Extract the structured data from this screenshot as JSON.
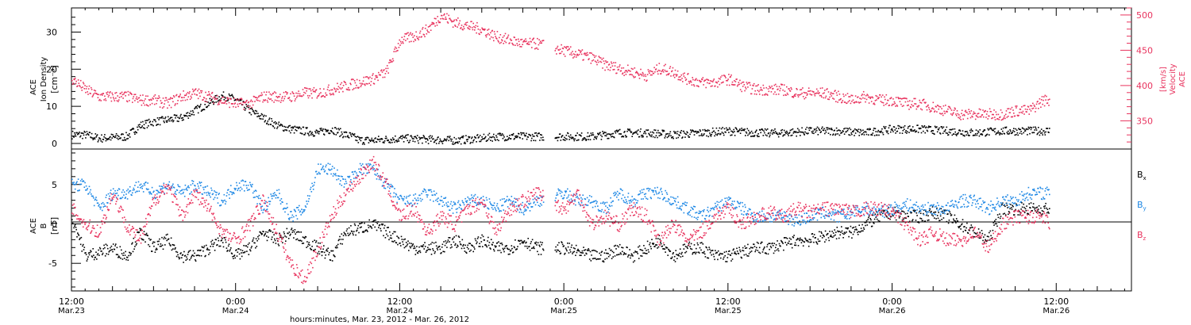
{
  "figure": {
    "xlabel": "hours:minutes, Mar. 23, 2012 - Mar. 26, 2012",
    "x_ticks": [
      {
        "time": "12:00",
        "date": "Mar.23",
        "hour": 0
      },
      {
        "time": "0:00",
        "date": "Mar.24",
        "hour": 12
      },
      {
        "time": "12:00",
        "date": "Mar.24",
        "hour": 24
      },
      {
        "time": "0:00",
        "date": "Mar.25",
        "hour": 36
      },
      {
        "time": "12:00",
        "date": "Mar.25",
        "hour": 48
      },
      {
        "time": "0:00",
        "date": "Mar.26",
        "hour": 60
      },
      {
        "time": "12:00",
        "date": "Mar.26",
        "hour": 72
      }
    ],
    "x_range_hours": [
      0,
      77.5
    ],
    "colors": {
      "black": "#000000",
      "red": "#e8335e",
      "blue": "#1e88e5"
    }
  },
  "chart_data": [
    {
      "type": "scatter",
      "panel": "top",
      "ylabel_left": [
        "ACE",
        "Ion Density",
        "[cm⁻³]"
      ],
      "ylabel_right": [
        "ACE",
        "Velocity",
        "[km/s]"
      ],
      "left_ticks": [
        "0",
        "10",
        "20",
        "30"
      ],
      "right_ticks": [
        "350",
        "400",
        "450",
        "500"
      ],
      "ylim_left": [
        -1.5,
        36.5
      ],
      "ylim_right": [
        310,
        510
      ],
      "series": [
        {
          "axis": "left",
          "color": "#000000",
          "x": [
            0,
            1,
            2,
            4,
            5,
            6,
            8,
            9,
            10,
            11,
            12,
            13,
            13.5,
            14,
            14.5,
            15,
            16,
            17,
            18,
            19,
            20,
            20.5,
            21,
            22,
            24,
            26,
            28,
            30,
            31,
            32,
            34,
            36,
            38,
            40,
            42,
            44,
            46,
            48,
            50,
            52,
            54,
            56,
            58,
            60,
            62,
            64,
            66,
            68,
            70,
            71.5
          ],
          "y": [
            2.5,
            2.5,
            1.5,
            2,
            5,
            6,
            7,
            9,
            11,
            13,
            12,
            9,
            8,
            7,
            6,
            5,
            4,
            3.5,
            3,
            4,
            2.5,
            2,
            1,
            1,
            1.5,
            1.2,
            1,
            1.5,
            2,
            2,
            2,
            2,
            2,
            3,
            3,
            2.5,
            3,
            3.5,
            3,
            3,
            3.5,
            3.5,
            3,
            4,
            4,
            3.5,
            3,
            3.5,
            3.5,
            3.5
          ]
        },
        {
          "axis": "right",
          "color": "#e8335e",
          "x": [
            0,
            1,
            2,
            3,
            4,
            5,
            6,
            7,
            8,
            9,
            10,
            11,
            12,
            13,
            14,
            15,
            16,
            17,
            18,
            19,
            20,
            21,
            22,
            23,
            24,
            25,
            26,
            27,
            28,
            29,
            30,
            31,
            32,
            33,
            34,
            36,
            37,
            38,
            39,
            40,
            41,
            42,
            43,
            44,
            45,
            46,
            47,
            48,
            49,
            50,
            51,
            52,
            53,
            54,
            55,
            56,
            57,
            58,
            59,
            60,
            61,
            62,
            63,
            64,
            65,
            66,
            67,
            68,
            69,
            70,
            71,
            71.5
          ],
          "y": [
            410,
            395,
            385,
            385,
            385,
            380,
            380,
            375,
            385,
            390,
            385,
            380,
            375,
            375,
            385,
            385,
            385,
            390,
            390,
            395,
            400,
            405,
            410,
            420,
            465,
            470,
            480,
            500,
            490,
            485,
            480,
            470,
            465,
            460,
            460,
            450,
            445,
            440,
            430,
            425,
            420,
            415,
            425,
            420,
            410,
            405,
            405,
            410,
            400,
            395,
            395,
            395,
            390,
            390,
            390,
            385,
            380,
            385,
            380,
            380,
            375,
            375,
            370,
            365,
            360,
            360,
            360,
            360,
            365,
            365,
            380,
            380
          ]
        }
      ]
    },
    {
      "type": "scatter",
      "panel": "bottom",
      "ylabel_left": [
        "ACE",
        "B",
        "[nT]"
      ],
      "left_ticks": [
        "-5",
        "0",
        "5"
      ],
      "ylim": [
        -8.5,
        9.5
      ],
      "zero_line": true,
      "series": [
        {
          "name": "Bx",
          "color": "#000000",
          "x": [
            0,
            1,
            2,
            3,
            4,
            5,
            6,
            7,
            8,
            9,
            10,
            11,
            12,
            13,
            14,
            15,
            16,
            17,
            18,
            19,
            20,
            21,
            22,
            23,
            24,
            25,
            26,
            27,
            28,
            29,
            30,
            31,
            32,
            33,
            34,
            36,
            37,
            38,
            39,
            40,
            41,
            42,
            43,
            44,
            45,
            46,
            47,
            48,
            49,
            50,
            51,
            52,
            53,
            54,
            55,
            56,
            57,
            58,
            59,
            60,
            61,
            62,
            63,
            64,
            65,
            66,
            67,
            68,
            69,
            70,
            71,
            71.5
          ],
          "y": [
            1,
            -4,
            -3.5,
            -3,
            -4,
            -1,
            -3,
            -2,
            -4,
            -4,
            -3,
            -2,
            -4,
            -3,
            -1,
            -2,
            -1,
            -2,
            -3,
            -4,
            -1,
            -0.5,
            0,
            -1,
            -2,
            -3,
            -3,
            -3,
            -2,
            -3,
            -2,
            -3,
            -3,
            -2,
            -3,
            -3,
            -3.5,
            -4,
            -4,
            -3,
            -4,
            -3,
            -2,
            -4,
            -3,
            -3,
            -4,
            -4,
            -3.5,
            -3,
            -3,
            -2.5,
            -2,
            -2,
            -1.5,
            -1,
            -1,
            0,
            1,
            1.5,
            1,
            1,
            1.5,
            1,
            0,
            -1,
            -2,
            2,
            2,
            2,
            2,
            2
          ]
        },
        {
          "name": "By",
          "color": "#1e88e5",
          "x": [
            0,
            1,
            2,
            3,
            4,
            5,
            6,
            7,
            8,
            9,
            10,
            11,
            12,
            13,
            14,
            15,
            16,
            17,
            18,
            19,
            20,
            21,
            22,
            23,
            24,
            25,
            26,
            27,
            28,
            29,
            30,
            31,
            32,
            33,
            34,
            36,
            37,
            38,
            39,
            40,
            41,
            42,
            43,
            44,
            45,
            46,
            47,
            48,
            49,
            50,
            51,
            52,
            53,
            54,
            55,
            56,
            57,
            58,
            59,
            60,
            61,
            62,
            63,
            64,
            65,
            66,
            67,
            68,
            69,
            70,
            71,
            71.5
          ],
          "y": [
            5,
            5,
            2,
            4,
            4,
            5,
            4,
            5,
            4,
            5,
            4,
            3,
            5,
            5,
            2,
            4,
            1,
            2,
            7,
            7,
            5,
            7,
            7,
            5,
            3,
            3,
            4,
            3,
            2,
            3,
            3,
            2,
            3,
            2,
            3,
            4,
            3,
            3,
            2,
            4,
            3,
            4,
            4,
            3,
            2,
            1,
            2,
            3,
            2,
            1,
            1,
            1,
            0.5,
            1,
            1.5,
            1,
            1.5,
            2,
            1.5,
            2,
            2.5,
            2,
            2,
            2,
            3,
            3,
            2,
            3,
            3,
            4,
            4,
            4
          ]
        },
        {
          "name": "Bz",
          "color": "#e8335e",
          "x": [
            0,
            1,
            2,
            3,
            4,
            5,
            6,
            7,
            8,
            9,
            10,
            11,
            12,
            13,
            14,
            15,
            16,
            17,
            18,
            19,
            20,
            21,
            22,
            23,
            24,
            25,
            26,
            27,
            28,
            29,
            30,
            31,
            32,
            33,
            34,
            36,
            37,
            38,
            39,
            40,
            41,
            42,
            43,
            44,
            45,
            46,
            47,
            48,
            49,
            50,
            51,
            52,
            53,
            54,
            55,
            56,
            57,
            58,
            59,
            60,
            61,
            62,
            63,
            64,
            65,
            66,
            67,
            68,
            69,
            70,
            71,
            71.5
          ],
          "y": [
            2,
            0,
            -1,
            4,
            0,
            -2,
            3,
            5,
            1,
            4,
            2,
            -1,
            -2,
            0,
            3,
            -1,
            -5,
            -7,
            -3,
            1,
            4,
            6,
            8,
            5,
            1,
            2,
            -1,
            1,
            0,
            2,
            3,
            -1,
            2,
            3,
            4,
            2,
            4,
            0,
            1,
            0,
            2,
            1,
            -2,
            0,
            -2,
            -1,
            1,
            2,
            0,
            1,
            1.5,
            1,
            2,
            1.5,
            2,
            2,
            1.5,
            2,
            2,
            1.5,
            0,
            -2,
            -1,
            -2,
            -2,
            -1,
            -3,
            0,
            1,
            1,
            1,
            0
          ]
        }
      ]
    }
  ],
  "legend": [
    {
      "base": "B",
      "sub": "x",
      "color": "#000000"
    },
    {
      "base": "B",
      "sub": "y",
      "color": "#1e88e5"
    },
    {
      "base": "B",
      "sub": "z",
      "color": "#e8335e"
    }
  ]
}
